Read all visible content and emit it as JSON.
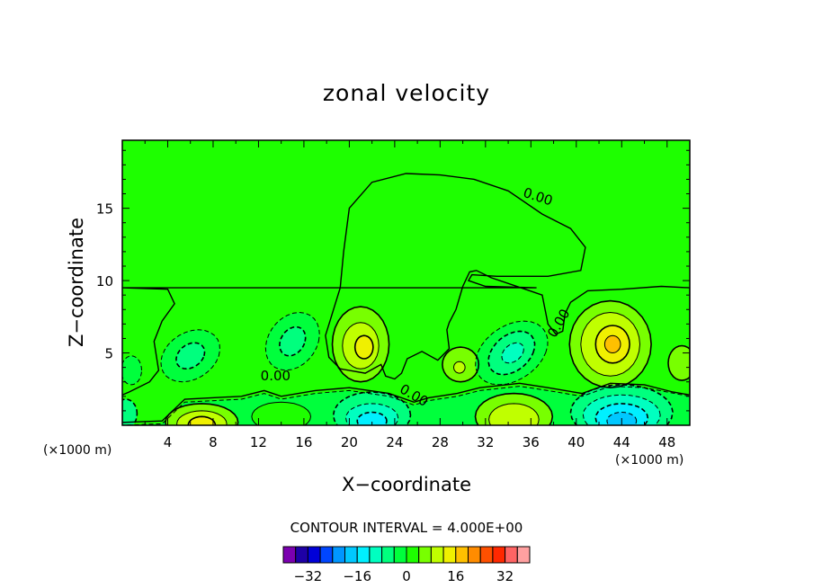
{
  "chart_data": {
    "type": "heatmap",
    "title": "zonal velocity",
    "xlabel": "X−coordinate",
    "ylabel": "Z−coordinate",
    "x_unit": "(×1000 m)",
    "z_unit": "(×1000 m)",
    "xlim": [
      0,
      50
    ],
    "ylim": [
      0,
      19.7
    ],
    "x_ticks": [
      4,
      8,
      12,
      16,
      20,
      24,
      28,
      32,
      36,
      40,
      44,
      48
    ],
    "y_ticks": [
      5,
      10,
      15
    ],
    "contour_interval_text": "CONTOUR INTERVAL = 4.000E+00",
    "contour_interval": 4,
    "contour_labels": [
      "0.00",
      "0.00",
      "0.00",
      "0.00"
    ],
    "features": [
      {
        "kind": "zero-contour-plume",
        "x_range": [
          19,
          41
        ],
        "z_top": 17.4,
        "value": 0
      },
      {
        "kind": "max",
        "x": 21,
        "z": 5.5,
        "level": 12
      },
      {
        "kind": "min",
        "x": 15,
        "z": 5.8,
        "level": -8
      },
      {
        "kind": "min",
        "x": 6,
        "z": 5,
        "level": -8
      },
      {
        "kind": "max",
        "x": 29.6,
        "z": 4,
        "level": 8
      },
      {
        "kind": "min",
        "x": 34.5,
        "z": 5,
        "level": -12
      },
      {
        "kind": "max",
        "x": 43,
        "z": 5.5,
        "level": 16
      },
      {
        "kind": "max",
        "x": 7,
        "z": 0.5,
        "level": 12
      },
      {
        "kind": "min",
        "x": 22,
        "z": 1,
        "level": -16
      },
      {
        "kind": "max",
        "x": 34.5,
        "z": 0.6,
        "level": 12
      },
      {
        "kind": "min",
        "x": 44,
        "z": 0.6,
        "level": -20
      }
    ],
    "colorbar": {
      "levels": [
        -36,
        -32,
        -28,
        -24,
        -20,
        -16,
        -12,
        -8,
        -4,
        0,
        4,
        8,
        12,
        16,
        20,
        24,
        28,
        32,
        36
      ],
      "tick_labels": [
        "−32",
        "−16",
        "0",
        "16",
        "32"
      ],
      "tick_values": [
        -32,
        -16,
        0,
        16,
        32
      ],
      "colors": [
        "#7b00b0",
        "#1e00a6",
        "#0000d8",
        "#0046ff",
        "#0096ff",
        "#00c8ff",
        "#00f0ff",
        "#00ffc0",
        "#00ff7e",
        "#00ff3c",
        "#1eff00",
        "#78ff00",
        "#c0ff00",
        "#f0f000",
        "#ffc000",
        "#ff8c00",
        "#ff5000",
        "#ff2800",
        "#ff6464",
        "#ffa0a0"
      ],
      "background_color": "#1eff00"
    }
  }
}
